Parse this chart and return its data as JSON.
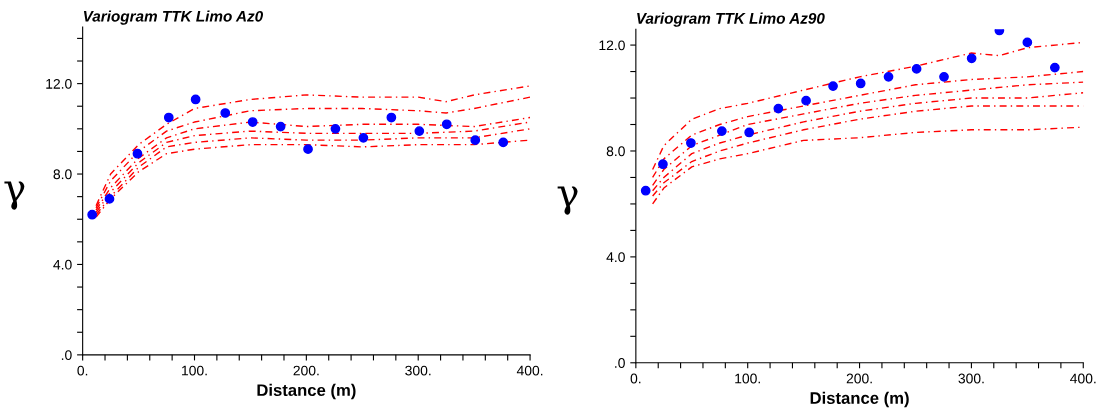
{
  "chart_data": [
    {
      "type": "scatter",
      "title": "Variogram TTK Limo Az0",
      "xlabel": "Distance (m)",
      "ylabel": "γ",
      "xlim": [
        0,
        400
      ],
      "ylim": [
        0,
        14.5
      ],
      "xticks": [
        {
          "value": 0,
          "label": "0."
        },
        {
          "value": 20,
          "label": null
        },
        {
          "value": 40,
          "label": null
        },
        {
          "value": 60,
          "label": null
        },
        {
          "value": 80,
          "label": null
        },
        {
          "value": 100,
          "label": "100."
        },
        {
          "value": 120,
          "label": null
        },
        {
          "value": 140,
          "label": null
        },
        {
          "value": 160,
          "label": null
        },
        {
          "value": 180,
          "label": null
        },
        {
          "value": 200,
          "label": "200."
        },
        {
          "value": 220,
          "label": null
        },
        {
          "value": 240,
          "label": null
        },
        {
          "value": 260,
          "label": null
        },
        {
          "value": 280,
          "label": null
        },
        {
          "value": 300,
          "label": "300."
        },
        {
          "value": 320,
          "label": null
        },
        {
          "value": 340,
          "label": null
        },
        {
          "value": 360,
          "label": null
        },
        {
          "value": 380,
          "label": null
        },
        {
          "value": 400,
          "label": "400."
        }
      ],
      "yticks": [
        {
          "value": 0,
          "label": ".0"
        },
        {
          "value": 1,
          "label": null
        },
        {
          "value": 2,
          "label": null
        },
        {
          "value": 3,
          "label": null
        },
        {
          "value": 4,
          "label": "4.0"
        },
        {
          "value": 5,
          "label": null
        },
        {
          "value": 6,
          "label": null
        },
        {
          "value": 7,
          "label": null
        },
        {
          "value": 8,
          "label": "8.0"
        },
        {
          "value": 9,
          "label": null
        },
        {
          "value": 10,
          "label": null
        },
        {
          "value": 11,
          "label": null
        },
        {
          "value": 12,
          "label": "12.0"
        },
        {
          "value": 13,
          "label": null
        },
        {
          "value": 14,
          "label": null
        }
      ],
      "series": [
        {
          "type": "line",
          "color": "#ff0000",
          "line_style": "dashed",
          "marker": "none",
          "x": [
            12,
            25,
            50,
            75,
            100,
            150,
            200,
            250,
            300,
            325,
            350,
            400
          ],
          "values": [
            6.6,
            8.0,
            9.3,
            10.2,
            10.9,
            11.3,
            11.5,
            11.4,
            11.4,
            11.2,
            11.5,
            11.9
          ]
        },
        {
          "type": "line",
          "color": "#ff0000",
          "line_style": "dashed",
          "marker": "none",
          "x": [
            12,
            25,
            50,
            75,
            100,
            150,
            200,
            250,
            300,
            325,
            350,
            400
          ],
          "values": [
            6.5,
            7.7,
            9.0,
            9.9,
            10.3,
            10.8,
            10.9,
            10.9,
            10.8,
            10.7,
            10.9,
            11.4
          ]
        },
        {
          "type": "line",
          "color": "#ff0000",
          "line_style": "dashed",
          "marker": "none",
          "x": [
            12,
            25,
            50,
            75,
            100,
            150,
            200,
            250,
            300,
            350,
            400
          ],
          "values": [
            6.4,
            7.4,
            8.7,
            9.6,
            10.0,
            10.3,
            10.1,
            10.2,
            10.2,
            10.1,
            10.5
          ]
        },
        {
          "type": "line",
          "color": "#ff0000",
          "line_style": "dashed",
          "marker": "none",
          "x": [
            12,
            25,
            50,
            75,
            100,
            150,
            200,
            250,
            300,
            350,
            400
          ],
          "values": [
            6.3,
            7.2,
            8.5,
            9.4,
            9.7,
            9.9,
            9.8,
            9.8,
            9.8,
            9.9,
            10.3
          ]
        },
        {
          "type": "line",
          "color": "#ff0000",
          "line_style": "dashed",
          "marker": "none",
          "x": [
            12,
            25,
            50,
            75,
            100,
            150,
            200,
            250,
            300,
            350,
            400
          ],
          "values": [
            6.2,
            7.0,
            8.3,
            9.2,
            9.4,
            9.6,
            9.5,
            9.5,
            9.6,
            9.6,
            10.0
          ]
        },
        {
          "type": "line",
          "color": "#ff0000",
          "line_style": "dashed",
          "marker": "none",
          "x": [
            12,
            25,
            50,
            75,
            100,
            150,
            200,
            250,
            300,
            350,
            400
          ],
          "values": [
            6.1,
            6.9,
            8.1,
            8.9,
            9.1,
            9.3,
            9.3,
            9.2,
            9.3,
            9.3,
            9.5
          ]
        },
        {
          "color": "#0000ff",
          "marker": "circle",
          "x": [
            8.5,
            24,
            49,
            77,
            101,
            127.5,
            152,
            177,
            201.5,
            226,
            251,
            276,
            301,
            325.5,
            351,
            376
          ],
          "values": [
            6.2,
            6.9,
            8.9,
            10.5,
            11.3,
            10.7,
            10.3,
            10.1,
            9.1,
            10.0,
            9.6,
            10.5,
            9.9,
            10.2,
            9.5,
            9.4
          ]
        }
      ]
    },
    {
      "type": "scatter",
      "title": "Variogram TTK Limo Az90",
      "xlabel": "Distance (m)",
      "ylabel": "γ",
      "xlim": [
        0,
        400
      ],
      "ylim": [
        0,
        12.6
      ],
      "xticks": [
        {
          "value": 0,
          "label": "0."
        },
        {
          "value": 20,
          "label": null
        },
        {
          "value": 40,
          "label": null
        },
        {
          "value": 60,
          "label": null
        },
        {
          "value": 80,
          "label": null
        },
        {
          "value": 100,
          "label": "100."
        },
        {
          "value": 120,
          "label": null
        },
        {
          "value": 140,
          "label": null
        },
        {
          "value": 160,
          "label": null
        },
        {
          "value": 180,
          "label": null
        },
        {
          "value": 200,
          "label": "200."
        },
        {
          "value": 220,
          "label": null
        },
        {
          "value": 240,
          "label": null
        },
        {
          "value": 260,
          "label": null
        },
        {
          "value": 280,
          "label": null
        },
        {
          "value": 300,
          "label": "300."
        },
        {
          "value": 320,
          "label": null
        },
        {
          "value": 340,
          "label": null
        },
        {
          "value": 360,
          "label": null
        },
        {
          "value": 380,
          "label": null
        },
        {
          "value": 400,
          "label": "400."
        }
      ],
      "yticks": [
        {
          "value": 0,
          "label": ".0"
        },
        {
          "value": 1,
          "label": null
        },
        {
          "value": 2,
          "label": null
        },
        {
          "value": 3,
          "label": null
        },
        {
          "value": 4,
          "label": "4.0"
        },
        {
          "value": 5,
          "label": null
        },
        {
          "value": 6,
          "label": null
        },
        {
          "value": 7,
          "label": null
        },
        {
          "value": 8,
          "label": "8.0"
        },
        {
          "value": 9,
          "label": null
        },
        {
          "value": 10,
          "label": null
        },
        {
          "value": 11,
          "label": null
        },
        {
          "value": 12,
          "label": "12.0"
        }
      ],
      "series": [
        {
          "type": "line",
          "color": "#ff0000",
          "line_style": "dashed",
          "marker": "none",
          "x": [
            15,
            25,
            50,
            75,
            100,
            150,
            200,
            250,
            300,
            325,
            350,
            400
          ],
          "values": [
            7.3,
            8.2,
            9.2,
            9.6,
            9.8,
            10.3,
            10.8,
            11.2,
            11.7,
            11.6,
            11.9,
            12.1
          ]
        },
        {
          "type": "line",
          "color": "#ff0000",
          "line_style": "dashed",
          "marker": "none",
          "x": [
            15,
            25,
            50,
            75,
            100,
            150,
            200,
            250,
            300,
            350,
            400
          ],
          "values": [
            7.0,
            7.7,
            8.6,
            9.0,
            9.3,
            9.7,
            10.1,
            10.5,
            10.7,
            10.8,
            11.0
          ]
        },
        {
          "type": "line",
          "color": "#ff0000",
          "line_style": "dashed",
          "marker": "none",
          "x": [
            15,
            25,
            50,
            75,
            100,
            150,
            200,
            250,
            300,
            350,
            400
          ],
          "values": [
            6.7,
            7.3,
            8.2,
            8.6,
            9.0,
            9.4,
            9.8,
            10.1,
            10.3,
            10.5,
            10.6
          ]
        },
        {
          "type": "line",
          "color": "#ff0000",
          "line_style": "dashed",
          "marker": "none",
          "x": [
            15,
            25,
            50,
            75,
            100,
            150,
            200,
            250,
            300,
            350,
            400
          ],
          "values": [
            6.5,
            7.0,
            7.9,
            8.3,
            8.6,
            9.1,
            9.5,
            9.8,
            10.0,
            10.0,
            10.2
          ]
        },
        {
          "type": "line",
          "color": "#ff0000",
          "line_style": "dashed",
          "marker": "none",
          "x": [
            15,
            25,
            50,
            75,
            100,
            150,
            200,
            250,
            300,
            350,
            400
          ],
          "values": [
            6.3,
            6.8,
            7.6,
            8.0,
            8.3,
            8.8,
            9.2,
            9.5,
            9.7,
            9.7,
            9.7
          ]
        },
        {
          "type": "line",
          "color": "#ff0000",
          "line_style": "dashed",
          "marker": "none",
          "x": [
            15,
            25,
            50,
            75,
            100,
            150,
            200,
            250,
            300,
            350,
            400
          ],
          "values": [
            6.0,
            6.6,
            7.4,
            7.7,
            7.9,
            8.4,
            8.5,
            8.7,
            8.8,
            8.8,
            8.9
          ]
        },
        {
          "color": "#0000ff",
          "marker": "circle",
          "x": [
            8.8,
            24.2,
            49.2,
            76.9,
            101.3,
            127.4,
            152.2,
            176.3,
            201,
            225.9,
            251,
            275.5,
            300.2,
            325,
            350,
            374.6
          ],
          "values": [
            6.5,
            7.5,
            8.3,
            8.75,
            8.7,
            9.6,
            9.9,
            10.45,
            10.55,
            10.8,
            11.1,
            10.8,
            11.5,
            12.55,
            12.1,
            11.15
          ]
        }
      ]
    }
  ]
}
